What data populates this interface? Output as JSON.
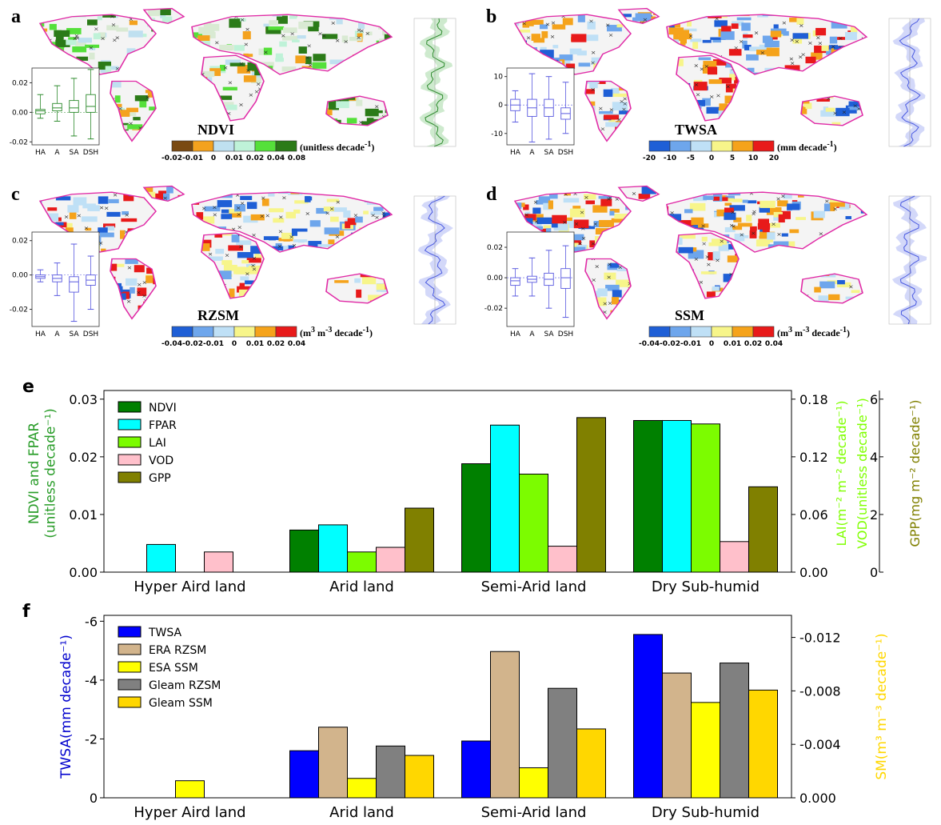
{
  "maps": [
    {
      "id": "a",
      "label": "a",
      "var": "NDVI",
      "unit": "(unitless decade",
      "unit_sup": "-1",
      "unit_close": ")",
      "colorbar": {
        "colors": [
          "#7a4a12",
          "#f4a21e",
          "#bfe0f0",
          "#bff2d8",
          "#55e03a",
          "#2b7b18"
        ],
        "ticks": [
          "-0.02",
          "-0.01",
          "0",
          "0.01",
          "0.02",
          "0.04",
          "0.08"
        ]
      },
      "box": {
        "yticks": [
          "0.02",
          "0.00",
          "-0.02"
        ],
        "ylim": [
          -0.022,
          0.03
        ],
        "categories": [
          "HA",
          "A",
          "SA",
          "DSH"
        ],
        "color": "#2e8b2e",
        "stats": [
          [
            -0.004,
            -0.001,
            0.001,
            0.002,
            0.012
          ],
          [
            -0.006,
            0.001,
            0.003,
            0.006,
            0.018
          ],
          [
            -0.016,
            0.0,
            0.003,
            0.008,
            0.023
          ],
          [
            -0.018,
            0.0,
            0.004,
            0.012,
            0.029
          ]
        ]
      },
      "palette": [
        "#bfe0f0",
        "#bff2d8",
        "#55e03a",
        "#2b7b18",
        "#f4a21e",
        "#d9ead3"
      ]
    },
    {
      "id": "b",
      "label": "b",
      "var": "TWSA",
      "unit": "(mm decade",
      "unit_sup": "-1",
      "unit_close": ")",
      "colorbar": {
        "colors": [
          "#1f5fd6",
          "#6ea6ec",
          "#bfe0f6",
          "#f7f58a",
          "#f5a31b",
          "#e81a1a"
        ],
        "ticks": [
          "-20",
          "-10",
          "-5",
          "0",
          "5",
          "10",
          "20"
        ]
      },
      "box": {
        "yticks": [
          "10",
          "0",
          "-10"
        ],
        "ylim": [
          -14,
          13
        ],
        "categories": [
          "HA",
          "A",
          "SA",
          "DSH"
        ],
        "color": "#5a5ae0",
        "stats": [
          [
            -6,
            -2,
            0,
            2,
            5
          ],
          [
            -13,
            -4,
            -1,
            2,
            11
          ],
          [
            -12,
            -4,
            -1,
            2,
            10
          ],
          [
            -10,
            -5,
            -3,
            -1,
            8
          ]
        ]
      },
      "palette": [
        "#1f5fd6",
        "#6ea6ec",
        "#bfe0f6",
        "#f7f58a",
        "#f5a31b",
        "#e81a1a"
      ]
    },
    {
      "id": "c",
      "label": "c",
      "var": "RZSM",
      "unit": "(m",
      "unit_sup": "3",
      "unit_mid": " m",
      "unit_sup2": "-3",
      "unit_tail": " decade",
      "unit_sup3": "-1",
      "unit_close": ")",
      "colorbar": {
        "colors": [
          "#1f5fd6",
          "#6ea6ec",
          "#bfe0f6",
          "#f7f58a",
          "#f5a31b",
          "#e81a1a"
        ],
        "ticks": [
          "-0.04",
          "-0.02",
          "-0.01",
          "0",
          "0.01",
          "0.02",
          "0.04"
        ]
      },
      "box": {
        "yticks": [
          "0.02",
          "0.00",
          "-0.02"
        ],
        "ylim": [
          -0.03,
          0.025
        ],
        "categories": [
          "HA",
          "A",
          "SA",
          "DSH"
        ],
        "color": "#5a5ae0",
        "stats": [
          [
            -0.004,
            -0.002,
            -0.001,
            0.0,
            0.003
          ],
          [
            -0.012,
            -0.004,
            -0.002,
            0.0,
            0.007
          ],
          [
            -0.027,
            -0.01,
            -0.004,
            -0.001,
            0.018
          ],
          [
            -0.02,
            -0.006,
            -0.003,
            0.0,
            0.011
          ]
        ]
      },
      "palette": [
        "#1f5fd6",
        "#6ea6ec",
        "#bfe0f6",
        "#f7f58a",
        "#f5a31b",
        "#e81a1a"
      ]
    },
    {
      "id": "d",
      "label": "d",
      "var": "SSM",
      "unit": "(m",
      "unit_sup": "3",
      "unit_mid": " m",
      "unit_sup2": "-3",
      "unit_tail": " decade",
      "unit_sup3": "-1",
      "unit_close": ")",
      "colorbar": {
        "colors": [
          "#1f5fd6",
          "#6ea6ec",
          "#bfe0f6",
          "#f7f58a",
          "#f5a31b",
          "#e81a1a"
        ],
        "ticks": [
          "-0.04",
          "-0.02",
          "-0.01",
          "0",
          "0.01",
          "0.02",
          "0.04"
        ]
      },
      "box": {
        "yticks": [
          "0.02",
          "0.00",
          "-0.02"
        ],
        "ylim": [
          -0.032,
          0.03
        ],
        "categories": [
          "HA",
          "A",
          "SA",
          "DSH"
        ],
        "color": "#5a5ae0",
        "stats": [
          [
            -0.012,
            -0.005,
            -0.002,
            0.0,
            0.006
          ],
          [
            -0.012,
            -0.003,
            -0.001,
            0.001,
            0.013
          ],
          [
            -0.02,
            -0.005,
            -0.001,
            0.003,
            0.018
          ],
          [
            -0.026,
            -0.007,
            0.0,
            0.006,
            0.021
          ]
        ]
      },
      "palette": [
        "#1f5fd6",
        "#6ea6ec",
        "#bfe0f6",
        "#f7f58a",
        "#f5a31b",
        "#e81a1a"
      ]
    }
  ],
  "chart_data": [
    {
      "id": "e",
      "label": "e",
      "type": "bar",
      "categories": [
        "Hyper Aird land",
        "Arid land",
        "Semi-Arid land",
        "Dry Sub-humid"
      ],
      "ylabel_left": "NDVI and FPAR\n(unitless decade⁻¹)",
      "ylabel_right1": "LAI(m⁻² m⁻² decade⁻¹)",
      "ylabel_right2": "VOD(unitless decade⁻¹)",
      "ylabel_right3": "GPP(mg m⁻² decade⁻¹)",
      "ylim_left": [
        0,
        0.0315
      ],
      "yticks_left": [
        "0.00",
        "0.01",
        "0.02",
        "0.03"
      ],
      "yticks_right1": [
        "0.00",
        "0.06",
        "0.12",
        "0.18"
      ],
      "yticks_right3": [
        "0",
        "2",
        "4",
        "6"
      ],
      "colors": {
        "left_axis": "#2a9d2a",
        "right1_axis": "#7fff00",
        "right3_axis": "#808000"
      },
      "series": [
        {
          "name": "NDVI",
          "color": "#008000",
          "values": [
            0,
            0.0073,
            0.0188,
            0.0263
          ]
        },
        {
          "name": "FPAR",
          "color": "#00ffff",
          "values": [
            0.0048,
            0.0082,
            0.0255,
            0.0263
          ]
        },
        {
          "name": "LAI",
          "color": "#7cfc00",
          "values": [
            0,
            0.0035,
            0.017,
            0.0257
          ]
        },
        {
          "name": "VOD",
          "color": "#ffc0cb",
          "values": [
            0.0035,
            0.0043,
            0.0045,
            0.0053
          ]
        },
        {
          "name": "GPP",
          "color": "#808000",
          "values": [
            0,
            0.0111,
            0.0268,
            0.0148
          ]
        }
      ]
    },
    {
      "id": "f",
      "label": "f",
      "type": "bar",
      "categories": [
        "Hyper Aird land",
        "Arid land",
        "Semi-Arid land",
        "Dry Sub-humid"
      ],
      "ylabel_left": "TWSA(mm decade⁻¹)",
      "ylabel_right": "SM(m³ m⁻³ decade⁻¹)",
      "ylim_left": [
        0,
        -6.2
      ],
      "yticks_left": [
        "0",
        "-2",
        "-4",
        "-6"
      ],
      "yticks_right": [
        "0.000",
        "-0.004",
        "-0.008",
        "-0.012"
      ],
      "colors": {
        "left_axis": "#0000cd",
        "right_axis": "#ffd700"
      },
      "series": [
        {
          "name": "TWSA",
          "color": "#0000ff",
          "values": [
            0,
            -1.6,
            -1.93,
            -5.55
          ]
        },
        {
          "name": "ERA RZSM",
          "color": "#d2b48c",
          "values": [
            0,
            -2.4,
            -4.97,
            -4.24
          ]
        },
        {
          "name": "ESA SSM",
          "color": "#ffff00",
          "values": [
            -0.58,
            -0.66,
            -1.02,
            -3.24
          ]
        },
        {
          "name": "Gleam RZSM",
          "color": "#808080",
          "values": [
            0,
            -1.76,
            -3.72,
            -4.58
          ]
        },
        {
          "name": "Gleam SSM",
          "color": "#ffd700",
          "values": [
            0,
            -1.44,
            -2.34,
            -3.66
          ]
        }
      ]
    }
  ]
}
